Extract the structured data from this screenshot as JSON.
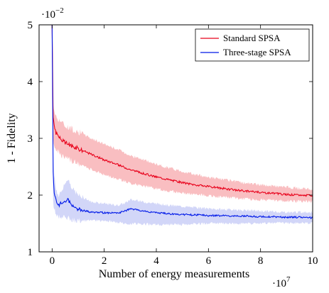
{
  "chart_data": {
    "type": "line",
    "xlabel": "Number of energy measurements",
    "ylabel": "1 - Fidelity",
    "x_multiplier_text": "·10",
    "x_multiplier_exp": "7",
    "y_multiplier_text": "·10",
    "y_multiplier_exp": "−2",
    "xlim": [
      -0.5,
      10
    ],
    "ylim": [
      1,
      5
    ],
    "x_ticks": [
      0,
      2,
      4,
      6,
      8,
      10
    ],
    "y_ticks": [
      1,
      2,
      3,
      4,
      5
    ],
    "grid": false,
    "legend_position": "top-right",
    "series": [
      {
        "name": "Standard SPSA",
        "color": "#e8001a",
        "band_color": "#f7a8ac",
        "x": [
          0.0,
          0.04,
          0.08,
          0.15,
          0.3,
          0.5,
          1.0,
          1.5,
          2.0,
          2.5,
          3.0,
          3.5,
          4.0,
          4.5,
          5.0,
          5.5,
          6.0,
          6.5,
          7.0,
          7.5,
          8.0,
          8.5,
          9.0,
          9.5,
          10.0
        ],
        "y": [
          5.0,
          3.4,
          3.2,
          3.1,
          3.0,
          2.92,
          2.82,
          2.72,
          2.62,
          2.54,
          2.45,
          2.38,
          2.32,
          2.27,
          2.22,
          2.18,
          2.15,
          2.12,
          2.09,
          2.07,
          2.05,
          2.03,
          2.01,
          2.0,
          1.99
        ],
        "lower": [
          5.0,
          3.0,
          2.9,
          2.82,
          2.72,
          2.65,
          2.55,
          2.45,
          2.36,
          2.29,
          2.21,
          2.16,
          2.11,
          2.07,
          2.04,
          2.01,
          1.99,
          1.97,
          1.95,
          1.93,
          1.92,
          1.91,
          1.9,
          1.89,
          1.89
        ],
        "upper": [
          5.0,
          3.62,
          3.5,
          3.38,
          3.32,
          3.22,
          3.12,
          3.0,
          2.9,
          2.81,
          2.7,
          2.62,
          2.54,
          2.48,
          2.42,
          2.36,
          2.32,
          2.28,
          2.24,
          2.21,
          2.18,
          2.16,
          2.14,
          2.12,
          2.1
        ]
      },
      {
        "name": "Three-stage SPSA",
        "color": "#0019e8",
        "band_color": "#c3c8f6",
        "x": [
          0.0,
          0.04,
          0.08,
          0.15,
          0.25,
          0.4,
          0.6,
          0.8,
          1.0,
          1.5,
          2.0,
          2.5,
          2.8,
          3.0,
          3.5,
          4.0,
          4.5,
          5.0,
          5.5,
          6.0,
          6.5,
          7.0,
          7.5,
          8.0,
          8.5,
          9.0,
          9.5,
          10.0
        ],
        "y": [
          5.0,
          2.4,
          2.05,
          1.9,
          1.82,
          1.88,
          1.92,
          1.8,
          1.75,
          1.7,
          1.69,
          1.68,
          1.72,
          1.76,
          1.72,
          1.69,
          1.67,
          1.66,
          1.65,
          1.64,
          1.64,
          1.63,
          1.63,
          1.62,
          1.62,
          1.61,
          1.61,
          1.6
        ],
        "lower": [
          5.0,
          1.9,
          1.75,
          1.68,
          1.62,
          1.62,
          1.6,
          1.56,
          1.55,
          1.55,
          1.55,
          1.52,
          1.5,
          1.5,
          1.49,
          1.48,
          1.48,
          1.48,
          1.49,
          1.5,
          1.5,
          1.5,
          1.5,
          1.5,
          1.51,
          1.51,
          1.51,
          1.51
        ],
        "upper": [
          5.0,
          2.8,
          2.35,
          2.1,
          2.0,
          2.1,
          2.3,
          2.1,
          2.0,
          1.88,
          1.85,
          1.82,
          1.86,
          1.92,
          1.88,
          1.85,
          1.82,
          1.8,
          1.78,
          1.76,
          1.75,
          1.74,
          1.73,
          1.72,
          1.71,
          1.7,
          1.7,
          1.7
        ]
      }
    ]
  }
}
